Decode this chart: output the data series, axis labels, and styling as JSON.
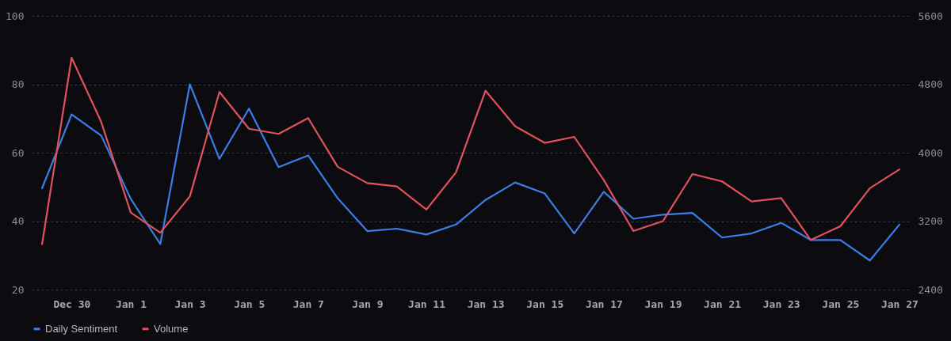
{
  "chart_data": {
    "type": "line",
    "categories": [
      null,
      "Dec 30",
      null,
      "Jan 1",
      null,
      "Jan 3",
      null,
      "Jan 5",
      null,
      "Jan 7",
      null,
      "Jan 9",
      null,
      "Jan 11",
      null,
      "Jan 13",
      null,
      "Jan 15",
      null,
      "Jan 17",
      null,
      "Jan 19",
      null,
      "Jan 21",
      null,
      "Jan 23",
      null,
      "Jan 25",
      null,
      "Jan 27"
    ],
    "series": [
      {
        "name": "Daily Sentiment",
        "color": "#3b7ee8",
        "values": [
          49.6,
          71.2,
          65,
          46.5,
          33.3,
          80,
          58.2,
          72.9,
          55.8,
          59.2,
          46.7,
          37.1,
          37.8,
          36.1,
          39,
          46.2,
          51.3,
          48.1,
          36.4,
          48.6,
          40.7,
          41.9,
          42.4,
          35.2,
          36.4,
          39.5,
          34.5,
          34.5,
          28.5,
          39
        ]
      },
      {
        "name": "Volume",
        "color": "#e0525c",
        "axis": "y2",
        "values": [
          2930,
          5110,
          4360,
          3300,
          3065,
          3490,
          4710,
          4280,
          4220,
          4405,
          3835,
          3645,
          3605,
          3335,
          3770,
          4725,
          4310,
          4115,
          4185,
          3680,
          3085,
          3200,
          3750,
          3665,
          3430,
          3470,
          2980,
          3140,
          3585,
          3805
        ]
      }
    ],
    "ylim": [
      20,
      100
    ],
    "yticks": [
      20,
      40,
      60,
      80,
      100
    ],
    "y2lim": [
      2400,
      5600
    ],
    "y2ticks": [
      2400,
      3200,
      4000,
      4800,
      5600
    ],
    "grid": "y",
    "legend": "bottom",
    "marker": "none",
    "line_style": "solid"
  }
}
